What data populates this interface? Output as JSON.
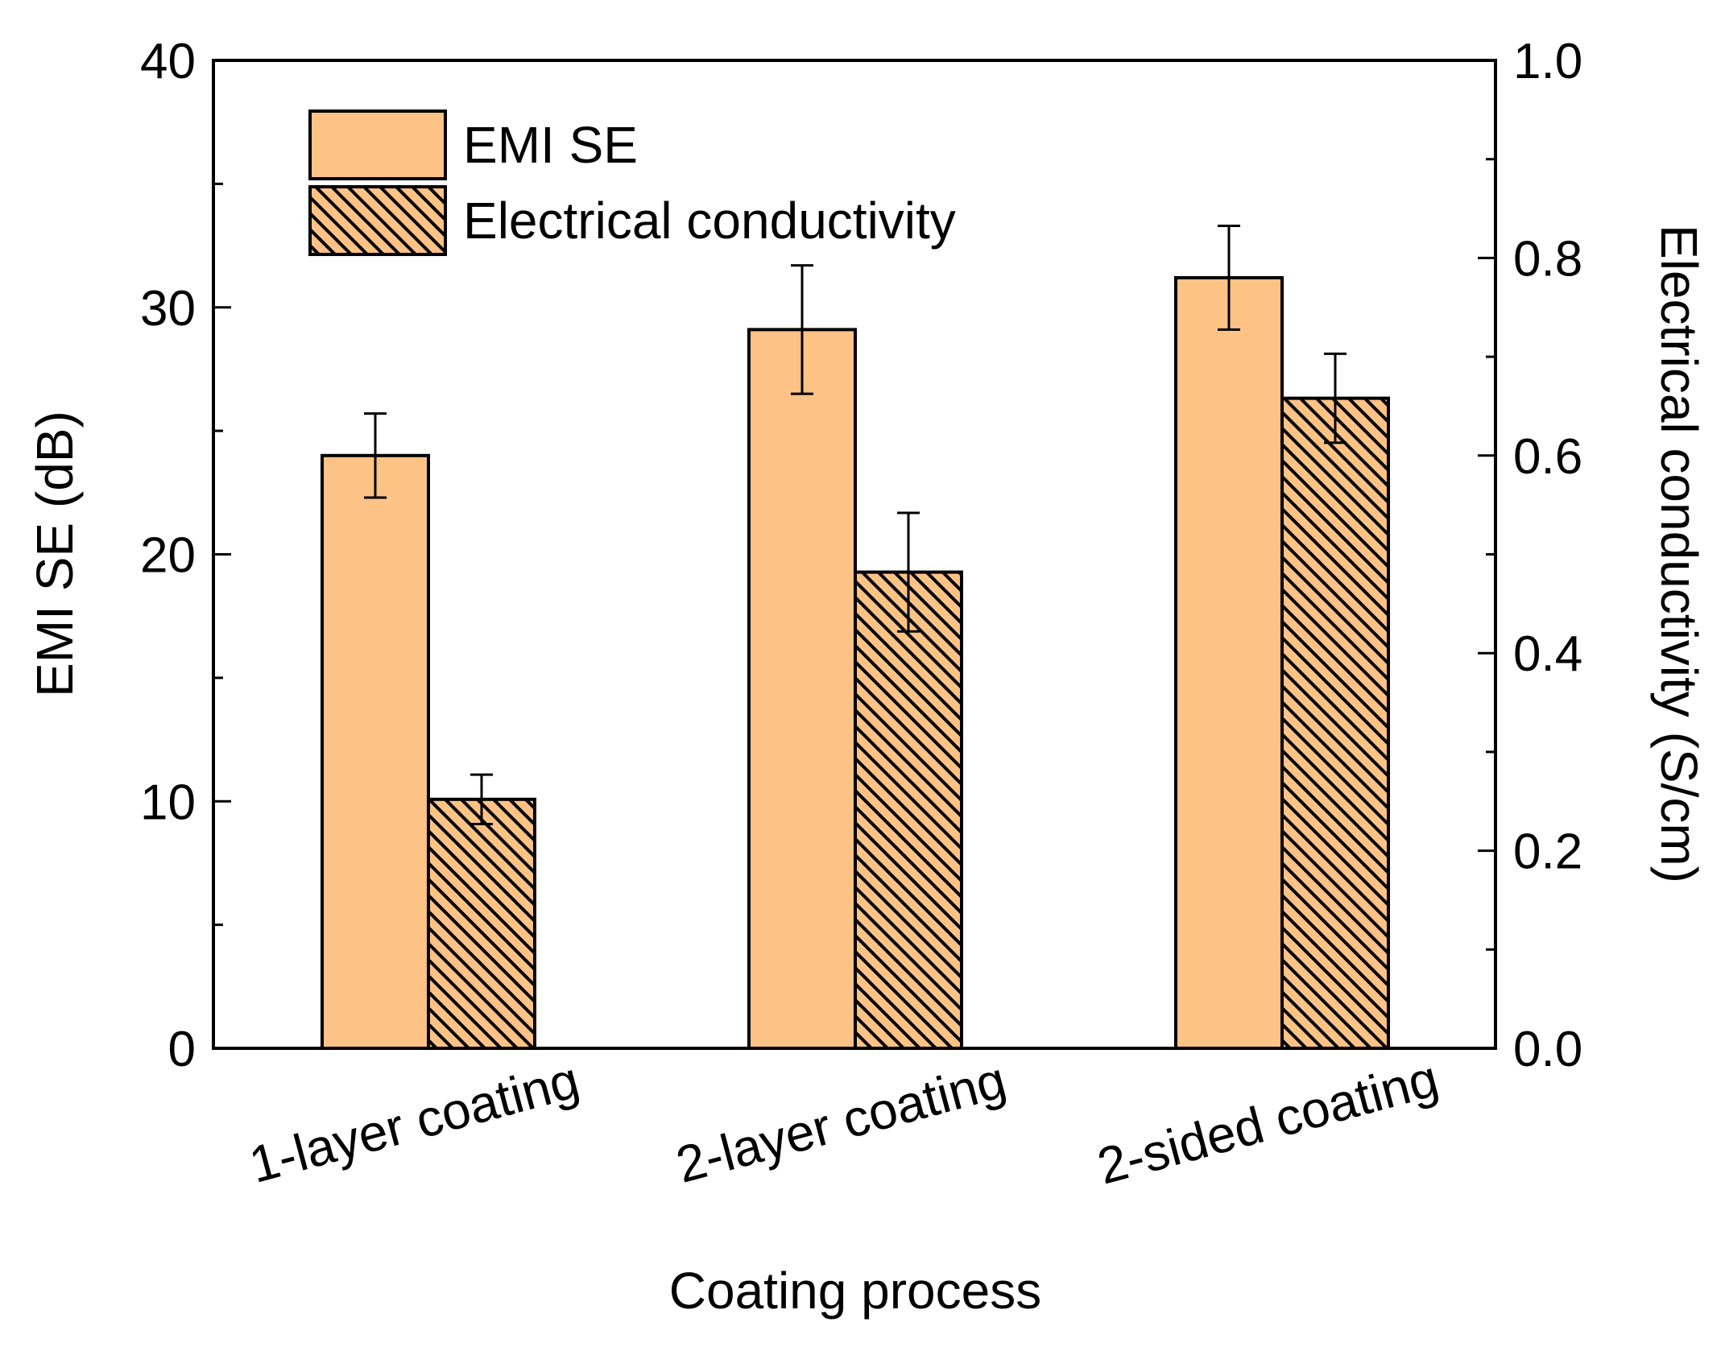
{
  "chart_data": {
    "type": "bar",
    "xlabel": "Coating process",
    "ylabel_left": "EMI SE (dB)",
    "ylabel_right": "Electrical conductivity (S/cm)",
    "categories": [
      "1-layer coating",
      "2-layer coating",
      "2-sided coating"
    ],
    "ylim_left": [
      0,
      40
    ],
    "ylim_right": [
      0,
      1.0
    ],
    "yticks_left": [
      "0",
      "10",
      "20",
      "30",
      "40"
    ],
    "yticks_right": [
      "0.0",
      "0.2",
      "0.4",
      "0.6",
      "0.8",
      "1.0"
    ],
    "series": [
      {
        "name": "EMI SE",
        "axis": "left",
        "pattern": "solid",
        "values": [
          24.0,
          29.1,
          31.2
        ],
        "errors": [
          1.7,
          2.6,
          2.1
        ]
      },
      {
        "name": "Electrical conductivity",
        "axis": "right",
        "pattern": "hatched",
        "values": [
          0.252,
          0.482,
          0.658
        ],
        "errors": [
          0.025,
          0.06,
          0.045
        ]
      }
    ],
    "colors": {
      "bar_fill": "#FDC285",
      "edge": "#000000",
      "hatch": "#000000"
    },
    "legend_position": "top-left"
  }
}
